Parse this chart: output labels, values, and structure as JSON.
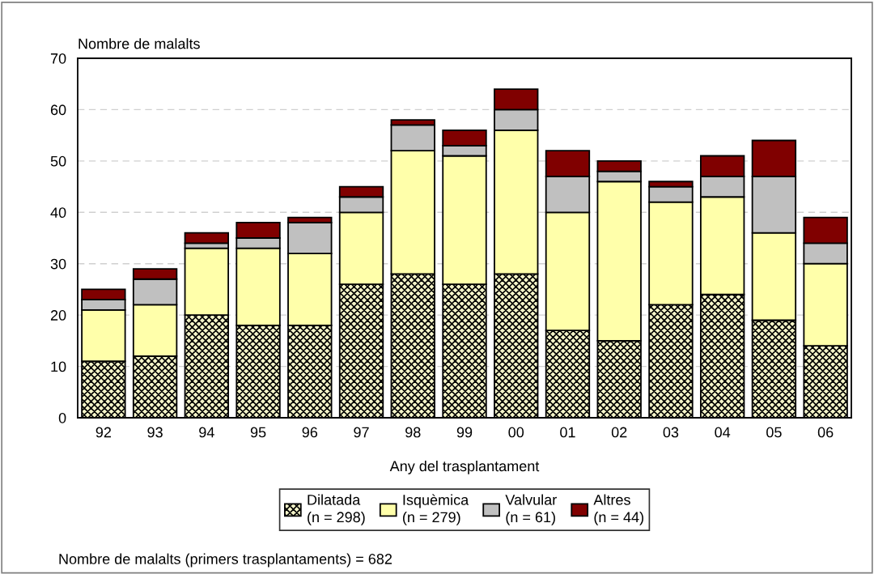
{
  "chart_data": {
    "type": "bar",
    "stacked": true,
    "ylabel": "Nombre de malalts",
    "xlabel": "Any del trasplantament",
    "categories": [
      "92",
      "93",
      "94",
      "95",
      "96",
      "97",
      "98",
      "99",
      "00",
      "01",
      "02",
      "03",
      "04",
      "05",
      "06"
    ],
    "series": [
      {
        "name": "Dilatada\n(n = 298)",
        "color": "#f4f4c8",
        "values": [
          11,
          12,
          20,
          18,
          18,
          26,
          28,
          26,
          28,
          17,
          15,
          22,
          24,
          19,
          14
        ]
      },
      {
        "name": "Isquèmica\n(n = 279)",
        "color": "#ffffaa",
        "values": [
          10,
          10,
          13,
          15,
          14,
          14,
          24,
          25,
          28,
          23,
          31,
          20,
          19,
          17,
          16
        ]
      },
      {
        "name": "Valvular\n(n = 61)",
        "color": "#c0c0c0",
        "values": [
          2,
          5,
          1,
          2,
          6,
          3,
          5,
          2,
          4,
          7,
          2,
          3,
          4,
          11,
          4
        ]
      },
      {
        "name": "Altres\n(n = 44)",
        "color": "#800000",
        "values": [
          2,
          2,
          2,
          3,
          1,
          2,
          1,
          3,
          4,
          5,
          2,
          1,
          4,
          7,
          5
        ]
      }
    ],
    "ylim": [
      0,
      70
    ],
    "yticks": [
      0,
      10,
      20,
      30,
      40,
      50,
      60,
      70
    ],
    "grid": "y",
    "legend": "bottom",
    "annotations": [
      "Nombre de malalts (primers trasplantaments) = 682"
    ]
  }
}
